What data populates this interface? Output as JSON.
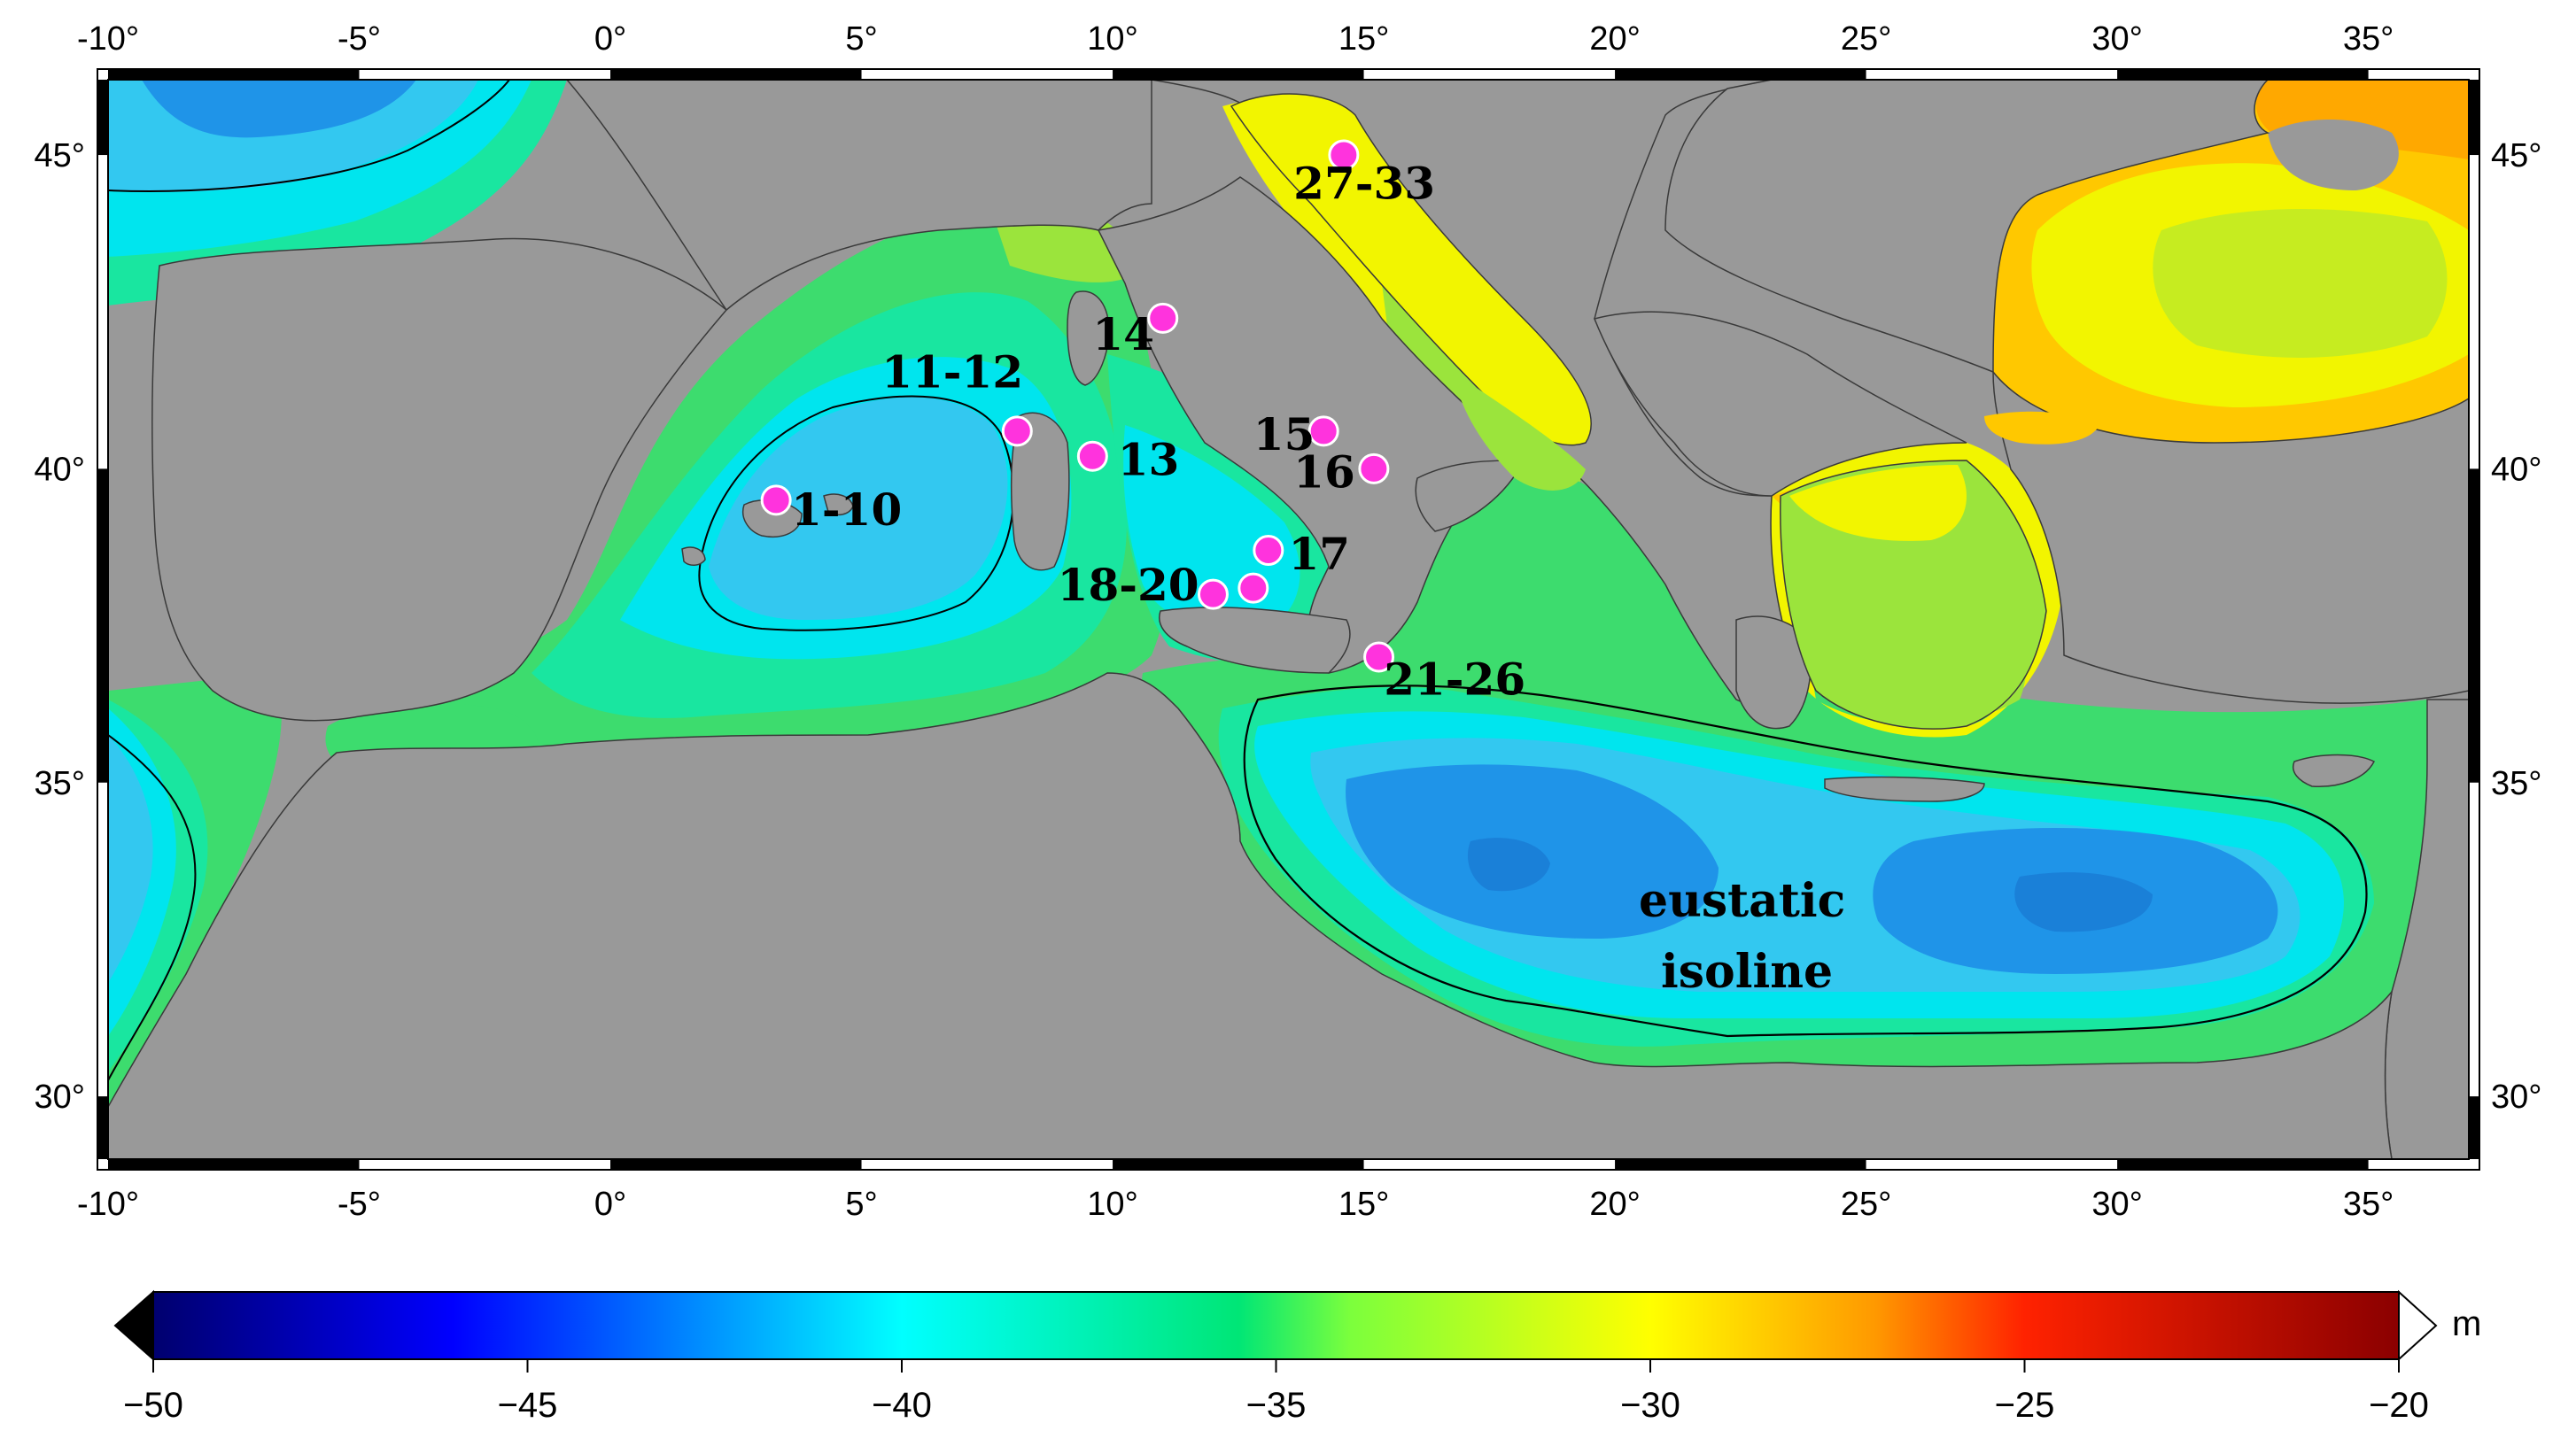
{
  "map": {
    "lon_range": [
      -10,
      37
    ],
    "lat_range": [
      29,
      46.2
    ],
    "lon_ticks": [
      -10,
      -5,
      0,
      5,
      10,
      15,
      20,
      25,
      30,
      35
    ],
    "lat_ticks": [
      30,
      35,
      40,
      45
    ],
    "lon_tick_labels": [
      "-10°",
      "-5°",
      "0°",
      "5°",
      "10°",
      "15°",
      "20°",
      "25°",
      "30°",
      "35°"
    ],
    "lat_tick_labels": [
      "30°",
      "35°",
      "40°",
      "45°"
    ],
    "colors": {
      "land": "#999999",
      "frame": "#000000"
    },
    "sites": [
      {
        "label": "1-10",
        "lon": 3.3,
        "lat": 39.5,
        "label_lon": 3.6,
        "label_lat": 39.1
      },
      {
        "label": "11-12",
        "lon": 8.1,
        "lat": 40.6,
        "label_lon": 5.4,
        "label_lat": 41.3
      },
      {
        "label": "13",
        "lon": 9.6,
        "lat": 40.2,
        "label_lon": 10.1,
        "label_lat": 39.9
      },
      {
        "label": "14",
        "lon": 11.0,
        "lat": 42.4,
        "label_lon": 9.6,
        "label_lat": 41.9
      },
      {
        "label": "15",
        "lon": 14.2,
        "lat": 40.6,
        "label_lon": 12.8,
        "label_lat": 40.3
      },
      {
        "label": "16",
        "lon": 15.2,
        "lat": 40.0,
        "label_lon": 13.6,
        "label_lat": 39.7
      },
      {
        "label": "17",
        "lon": 13.1,
        "lat": 38.7,
        "label_lon": 13.5,
        "label_lat": 38.4
      },
      {
        "label": "18-20",
        "lon": 12.0,
        "lat": 38.0,
        "lon2": 12.8,
        "lat2": 38.1,
        "label_lon": 8.9,
        "label_lat": 37.9
      },
      {
        "label": "21-26",
        "lon": 15.3,
        "lat": 37.0,
        "label_lon": 15.4,
        "label_lat": 36.4
      },
      {
        "label": "27-33",
        "lon": 14.6,
        "lat": 45.0,
        "label_lon": 13.6,
        "label_lat": 44.3
      }
    ],
    "annotation": [
      "eustatic",
      "isoline"
    ]
  },
  "colorbar": {
    "min": -50,
    "max": -20,
    "ticks": [
      -50,
      -45,
      -40,
      -35,
      -30,
      -25,
      -20
    ],
    "tick_labels": [
      "−50",
      "−45",
      "−40",
      "−35",
      "−30",
      "−25",
      "−20"
    ],
    "unit": "m",
    "stops": [
      {
        "value": -50,
        "color": "#00006e"
      },
      {
        "value": -46,
        "color": "#0000ff"
      },
      {
        "value": -43,
        "color": "#0080ff"
      },
      {
        "value": -40,
        "color": "#00ffff"
      },
      {
        "value": -35.5,
        "color": "#00e676"
      },
      {
        "value": -34,
        "color": "#7cff3c"
      },
      {
        "value": -30,
        "color": "#ffff00"
      },
      {
        "value": -27,
        "color": "#ff9900"
      },
      {
        "value": -25,
        "color": "#ff2200"
      },
      {
        "value": -20,
        "color": "#8b0000"
      }
    ]
  },
  "field_colors": {
    "deep": "#1f94e8",
    "mid": "#33c8f0",
    "shallow": "#00e5ee",
    "green1": "#19e6a0",
    "green2": "#3ddc6e",
    "lime": "#9be43c",
    "yellow": "#f2f500",
    "orange": "#ffc800",
    "orange2": "#ffa800"
  }
}
